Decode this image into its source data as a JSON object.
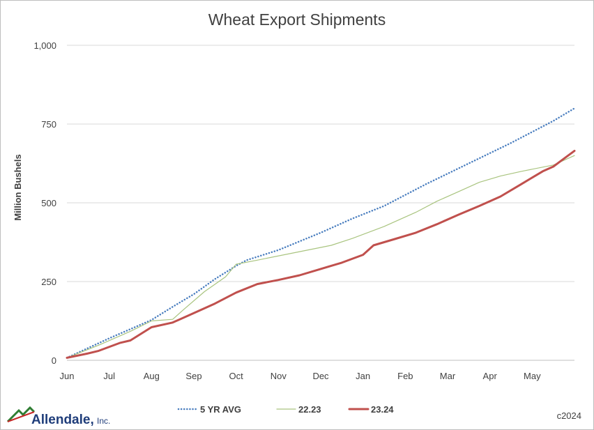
{
  "chart_data": {
    "type": "line",
    "title": "Wheat Export Shipments",
    "ylabel": "Million Bushels",
    "xlabel": "",
    "ylim": [
      0,
      1000
    ],
    "yticks": [
      0,
      250,
      500,
      750,
      1000
    ],
    "ytick_labels": [
      "0",
      "250",
      "500",
      "750",
      "1,000"
    ],
    "months": [
      "Jun",
      "Jul",
      "Aug",
      "Sep",
      "Oct",
      "Nov",
      "Dec",
      "Jan",
      "Feb",
      "Mar",
      "Apr",
      "May"
    ],
    "x_unit": "weeks",
    "grid": true,
    "legend_position": "bottom",
    "series": [
      {
        "name": "5 YR AVG",
        "color": "#4a7ebf",
        "style": "dotted",
        "points": [
          [
            0,
            8
          ],
          [
            4,
            70
          ],
          [
            8,
            128
          ],
          [
            10,
            170
          ],
          [
            12,
            210
          ],
          [
            14,
            258
          ],
          [
            16,
            300
          ],
          [
            17,
            318
          ],
          [
            20,
            350
          ],
          [
            24,
            405
          ],
          [
            27,
            450
          ],
          [
            30,
            490
          ],
          [
            34,
            560
          ],
          [
            38,
            625
          ],
          [
            42,
            690
          ],
          [
            46,
            760
          ],
          [
            48,
            800
          ]
        ]
      },
      {
        "name": "22.23",
        "color": "#a9c47f",
        "style": "solid",
        "points": [
          [
            0,
            8
          ],
          [
            3,
            48
          ],
          [
            6,
            92
          ],
          [
            8,
            125
          ],
          [
            10,
            130
          ],
          [
            11,
            160
          ],
          [
            13,
            218
          ],
          [
            15,
            265
          ],
          [
            16,
            305
          ],
          [
            18,
            318
          ],
          [
            22,
            345
          ],
          [
            25,
            365
          ],
          [
            27,
            387
          ],
          [
            30,
            425
          ],
          [
            33,
            470
          ],
          [
            35,
            505
          ],
          [
            37,
            535
          ],
          [
            39,
            565
          ],
          [
            41,
            585
          ],
          [
            43,
            600
          ],
          [
            46,
            620
          ],
          [
            48,
            650
          ]
        ]
      },
      {
        "name": "23.24",
        "color": "#c0504d",
        "style": "solid",
        "points": [
          [
            0,
            8
          ],
          [
            2,
            22
          ],
          [
            3,
            30
          ],
          [
            5,
            55
          ],
          [
            6,
            63
          ],
          [
            8,
            105
          ],
          [
            10,
            120
          ],
          [
            12,
            150
          ],
          [
            14,
            180
          ],
          [
            16,
            215
          ],
          [
            18,
            242
          ],
          [
            20,
            255
          ],
          [
            22,
            270
          ],
          [
            24,
            290
          ],
          [
            26,
            310
          ],
          [
            28,
            335
          ],
          [
            29,
            365
          ],
          [
            31,
            385
          ],
          [
            33,
            405
          ],
          [
            35,
            432
          ],
          [
            37,
            462
          ],
          [
            39,
            490
          ],
          [
            41,
            520
          ],
          [
            43,
            560
          ],
          [
            45,
            600
          ],
          [
            46,
            615
          ],
          [
            47,
            640
          ],
          [
            48,
            665
          ]
        ]
      }
    ]
  },
  "footer": {
    "logo_text": "Allendale,",
    "logo_suffix": "Inc.",
    "copyright": "c2024"
  }
}
